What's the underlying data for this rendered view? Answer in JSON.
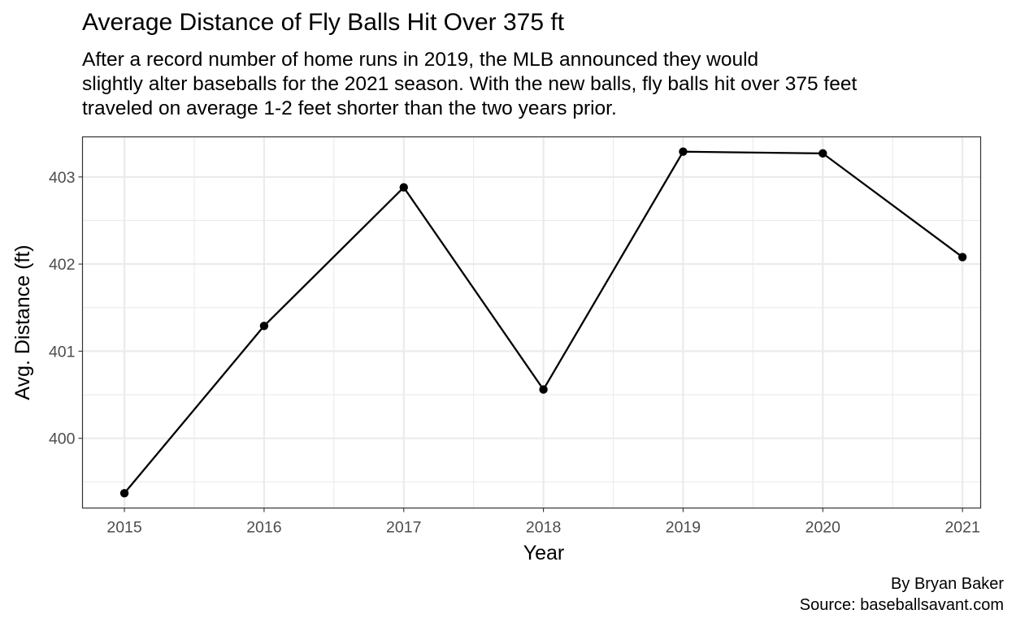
{
  "chart_data": {
    "type": "line",
    "title": "Average Distance of Fly Balls Hit Over 375 ft",
    "subtitle_lines": [
      "After a record number of home runs in 2019, the MLB announced they would",
      "slightly alter baseballs for the 2021 season. With the new balls, fly balls hit over 375 feet",
      "traveled on average 1-2 feet shorter than the two years prior."
    ],
    "xlabel": "Year",
    "ylabel": "Avg. Distance (ft)",
    "x": [
      2015,
      2016,
      2017,
      2018,
      2019,
      2020,
      2021
    ],
    "x_tick_labels": [
      "2015",
      "2016",
      "2017",
      "2018",
      "2019",
      "2020",
      "2021"
    ],
    "y": [
      399.37,
      401.29,
      402.88,
      400.56,
      403.29,
      403.27,
      402.08
    ],
    "y_ticks": [
      400,
      401,
      402,
      403
    ],
    "y_tick_labels": [
      "400",
      "401",
      "402",
      "403"
    ],
    "xlim": [
      2014.7,
      2021.13
    ],
    "ylim": [
      399.2,
      403.46
    ],
    "grid": true,
    "legend": "none",
    "line_color": "#000000",
    "point_color": "#000000",
    "grid_color": "#ebebeb",
    "panel_border_color": "#333333",
    "caption_lines": [
      "By Bryan Baker",
      "Source: baseballsavant.com"
    ]
  }
}
